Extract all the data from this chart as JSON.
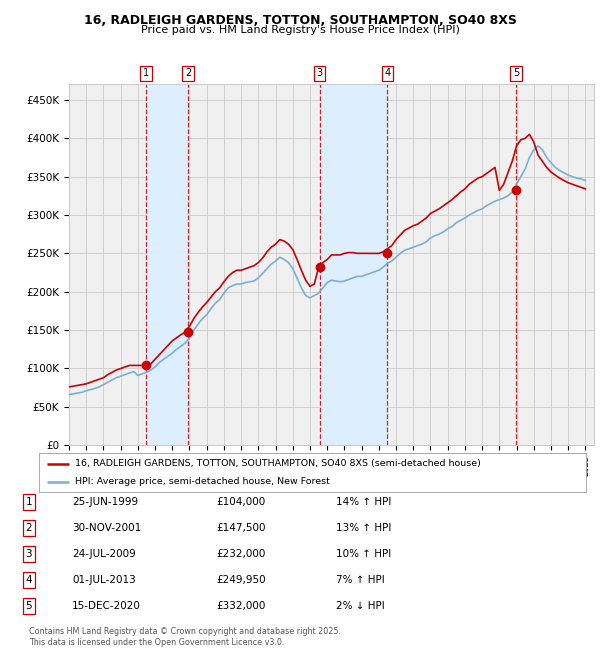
{
  "title1": "16, RADLEIGH GARDENS, TOTTON, SOUTHAMPTON, SO40 8XS",
  "title2": "Price paid vs. HM Land Registry's House Price Index (HPI)",
  "ylim": [
    0,
    470000
  ],
  "xlim_start": 1995.0,
  "xlim_end": 2025.5,
  "yticks": [
    0,
    50000,
    100000,
    150000,
    200000,
    250000,
    300000,
    350000,
    400000,
    450000
  ],
  "ytick_labels": [
    "£0",
    "£50K",
    "£100K",
    "£150K",
    "£200K",
    "£250K",
    "£300K",
    "£350K",
    "£400K",
    "£450K"
  ],
  "sale_dates": [
    1999.48,
    2001.91,
    2009.56,
    2013.5,
    2020.96
  ],
  "sale_prices": [
    104000,
    147500,
    232000,
    249950,
    332000
  ],
  "sale_labels": [
    "1",
    "2",
    "3",
    "4",
    "5"
  ],
  "sale_info": [
    [
      "1",
      "25-JUN-1999",
      "£104,000",
      "14% ↑ HPI"
    ],
    [
      "2",
      "30-NOV-2001",
      "£147,500",
      "13% ↑ HPI"
    ],
    [
      "3",
      "24-JUL-2009",
      "£232,000",
      "10% ↑ HPI"
    ],
    [
      "4",
      "01-JUL-2013",
      "£249,950",
      "7% ↑ HPI"
    ],
    [
      "5",
      "15-DEC-2020",
      "£332,000",
      "2% ↓ HPI"
    ]
  ],
  "red_line_color": "#cc0000",
  "blue_line_color": "#7ab0d4",
  "shade_color": "#ddeeff",
  "dashed_color": "#cc0000",
  "grid_color": "#cccccc",
  "bg_color": "#ffffff",
  "plot_bg_color": "#f0f0f0",
  "legend_label_red": "16, RADLEIGH GARDENS, TOTTON, SOUTHAMPTON, SO40 8XS (semi-detached house)",
  "legend_label_blue": "HPI: Average price, semi-detached house, New Forest",
  "footer": "Contains HM Land Registry data © Crown copyright and database right 2025.\nThis data is licensed under the Open Government Licence v3.0.",
  "hpi_years": [
    1995.0,
    1995.25,
    1995.5,
    1995.75,
    1996.0,
    1996.25,
    1996.5,
    1996.75,
    1997.0,
    1997.25,
    1997.5,
    1997.75,
    1998.0,
    1998.25,
    1998.5,
    1998.75,
    1999.0,
    1999.25,
    1999.5,
    1999.75,
    2000.0,
    2000.25,
    2000.5,
    2000.75,
    2001.0,
    2001.25,
    2001.5,
    2001.75,
    2002.0,
    2002.25,
    2002.5,
    2002.75,
    2003.0,
    2003.25,
    2003.5,
    2003.75,
    2004.0,
    2004.25,
    2004.5,
    2004.75,
    2005.0,
    2005.25,
    2005.5,
    2005.75,
    2006.0,
    2006.25,
    2006.5,
    2006.75,
    2007.0,
    2007.25,
    2007.5,
    2007.75,
    2008.0,
    2008.25,
    2008.5,
    2008.75,
    2009.0,
    2009.25,
    2009.5,
    2009.75,
    2010.0,
    2010.25,
    2010.5,
    2010.75,
    2011.0,
    2011.25,
    2011.5,
    2011.75,
    2012.0,
    2012.25,
    2012.5,
    2012.75,
    2013.0,
    2013.25,
    2013.5,
    2013.75,
    2014.0,
    2014.25,
    2014.5,
    2014.75,
    2015.0,
    2015.25,
    2015.5,
    2015.75,
    2016.0,
    2016.25,
    2016.5,
    2016.75,
    2017.0,
    2017.25,
    2017.5,
    2017.75,
    2018.0,
    2018.25,
    2018.5,
    2018.75,
    2019.0,
    2019.25,
    2019.5,
    2019.75,
    2020.0,
    2020.25,
    2020.5,
    2020.75,
    2021.0,
    2021.25,
    2021.5,
    2021.75,
    2022.0,
    2022.25,
    2022.5,
    2022.75,
    2023.0,
    2023.25,
    2023.5,
    2023.75,
    2024.0,
    2024.25,
    2024.5,
    2024.75,
    2025.0
  ],
  "hpi_values": [
    66000,
    67000,
    68000,
    69000,
    71000,
    72500,
    74000,
    76000,
    79000,
    82000,
    85000,
    88000,
    90000,
    92000,
    94000,
    96000,
    91000,
    93000,
    95000,
    98000,
    102000,
    108000,
    112000,
    116000,
    120000,
    125000,
    129000,
    133000,
    140000,
    150000,
    158000,
    165000,
    170000,
    178000,
    185000,
    190000,
    198000,
    205000,
    208000,
    210000,
    210000,
    212000,
    213000,
    214000,
    218000,
    224000,
    230000,
    236000,
    240000,
    245000,
    242000,
    238000,
    230000,
    218000,
    205000,
    195000,
    192000,
    195000,
    198000,
    205000,
    212000,
    215000,
    214000,
    213000,
    214000,
    216000,
    218000,
    220000,
    220000,
    222000,
    224000,
    226000,
    228000,
    232000,
    237000,
    240000,
    245000,
    250000,
    254000,
    256000,
    258000,
    260000,
    262000,
    265000,
    270000,
    273000,
    275000,
    278000,
    282000,
    285000,
    290000,
    293000,
    296000,
    300000,
    303000,
    306000,
    308000,
    312000,
    315000,
    318000,
    320000,
    322000,
    325000,
    330000,
    340000,
    350000,
    360000,
    375000,
    385000,
    390000,
    385000,
    375000,
    368000,
    362000,
    358000,
    355000,
    352000,
    350000,
    348000,
    347000,
    345000
  ],
  "red_years": [
    1995.0,
    1995.25,
    1995.5,
    1995.75,
    1996.0,
    1996.25,
    1996.5,
    1996.75,
    1997.0,
    1997.25,
    1997.5,
    1997.75,
    1998.0,
    1998.25,
    1998.5,
    1998.75,
    1999.0,
    1999.25,
    1999.5,
    1999.75,
    2000.0,
    2000.25,
    2000.5,
    2000.75,
    2001.0,
    2001.25,
    2001.5,
    2001.75,
    2002.0,
    2002.25,
    2002.5,
    2002.75,
    2003.0,
    2003.25,
    2003.5,
    2003.75,
    2004.0,
    2004.25,
    2004.5,
    2004.75,
    2005.0,
    2005.25,
    2005.5,
    2005.75,
    2006.0,
    2006.25,
    2006.5,
    2006.75,
    2007.0,
    2007.25,
    2007.5,
    2007.75,
    2008.0,
    2008.25,
    2008.5,
    2008.75,
    2009.0,
    2009.25,
    2009.5,
    2009.75,
    2010.0,
    2010.25,
    2010.5,
    2010.75,
    2011.0,
    2011.25,
    2011.5,
    2011.75,
    2012.0,
    2012.25,
    2012.5,
    2012.75,
    2013.0,
    2013.25,
    2013.5,
    2013.75,
    2014.0,
    2014.25,
    2014.5,
    2014.75,
    2015.0,
    2015.25,
    2015.5,
    2015.75,
    2016.0,
    2016.25,
    2016.5,
    2016.75,
    2017.0,
    2017.25,
    2017.5,
    2017.75,
    2018.0,
    2018.25,
    2018.5,
    2018.75,
    2019.0,
    2019.25,
    2019.5,
    2019.75,
    2020.0,
    2020.25,
    2020.5,
    2020.75,
    2021.0,
    2021.25,
    2021.5,
    2021.75,
    2022.0,
    2022.25,
    2022.5,
    2022.75,
    2023.0,
    2023.25,
    2023.5,
    2023.75,
    2024.0,
    2024.25,
    2024.5,
    2024.75,
    2025.0
  ],
  "red_values": [
    76000,
    77000,
    78000,
    79000,
    80000,
    82000,
    84000,
    86000,
    88000,
    92000,
    95000,
    98000,
    100000,
    102000,
    104000,
    104000,
    104000,
    104000,
    104000,
    106000,
    112000,
    118000,
    124000,
    130000,
    136000,
    140000,
    144000,
    147500,
    155000,
    165000,
    173000,
    180000,
    186000,
    193000,
    200000,
    205000,
    213000,
    220000,
    225000,
    228000,
    228000,
    230000,
    232000,
    234000,
    238000,
    244000,
    252000,
    258000,
    262000,
    268000,
    266000,
    262000,
    255000,
    242000,
    228000,
    215000,
    207000,
    210000,
    232000,
    238000,
    242000,
    248000,
    248000,
    248000,
    250000,
    251000,
    251000,
    250000,
    250000,
    250000,
    249950,
    249950,
    249950,
    252000,
    256000,
    260000,
    268000,
    274000,
    280000,
    283000,
    286000,
    288000,
    292000,
    296000,
    302000,
    305000,
    308000,
    312000,
    316000,
    320000,
    325000,
    330000,
    334000,
    340000,
    344000,
    348000,
    350000,
    354000,
    358000,
    362000,
    332000,
    340000,
    355000,
    370000,
    390000,
    398000,
    400000,
    405000,
    395000,
    378000,
    370000,
    362000,
    356000,
    352000,
    348000,
    345000,
    342000,
    340000,
    338000,
    336000,
    334000
  ]
}
